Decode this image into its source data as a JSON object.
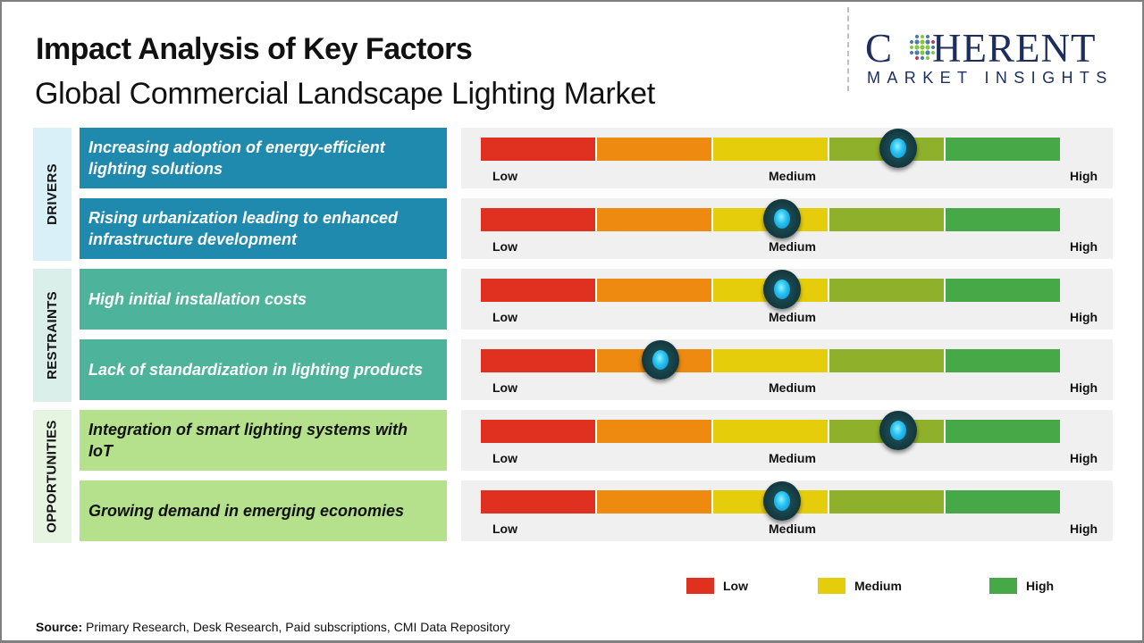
{
  "header": {
    "title": "Impact Analysis of Key Factors",
    "subtitle": "Global Commercial Landscape Lighting Market"
  },
  "logo": {
    "main_left": "C",
    "main_right": "HERENT",
    "sub": "MARKET INSIGHTS",
    "icon": "globe-dots-icon"
  },
  "scale": {
    "low_label": "Low",
    "medium_label": "Medium",
    "high_label": "High",
    "segment_colors": [
      "#e03020",
      "#ee8a10",
      "#e6cd0c",
      "#8fb02a",
      "#46a846"
    ]
  },
  "groups": [
    {
      "label": "DRIVERS",
      "label_bg": "#daf0f8",
      "factor_bg": "#1f8aad",
      "text_color": "#ffffff",
      "factors": [
        {
          "text": "Increasing adoption of energy-efficient lighting solutions",
          "impact": 0.72
        },
        {
          "text": "Rising urbanization leading to enhanced infrastructure development",
          "impact": 0.52
        }
      ]
    },
    {
      "label": "RESTRAINTS",
      "label_bg": "#daeeea",
      "factor_bg": "#4db39a",
      "text_color": "#ffffff",
      "factors": [
        {
          "text": "High initial installation costs",
          "impact": 0.52
        },
        {
          "text": "Lack of standardization in lighting products",
          "impact": 0.31
        }
      ]
    },
    {
      "label": "OPPORTUNITIES",
      "label_bg": "#e6f4e2",
      "factor_bg": "#b5e08c",
      "text_color": "#111111",
      "factors": [
        {
          "text": "Integration of smart lighting systems with IoT",
          "impact": 0.72
        },
        {
          "text": "Growing demand in emerging economies",
          "impact": 0.52
        }
      ]
    }
  ],
  "legend": [
    {
      "label": "Low",
      "color": "#e03020"
    },
    {
      "label": "Medium",
      "color": "#e6cd0c"
    },
    {
      "label": "High",
      "color": "#46a846"
    }
  ],
  "source": {
    "label": "Source:",
    "text": " Primary Research, Desk Research, Paid subscriptions, CMI Data Repository"
  }
}
